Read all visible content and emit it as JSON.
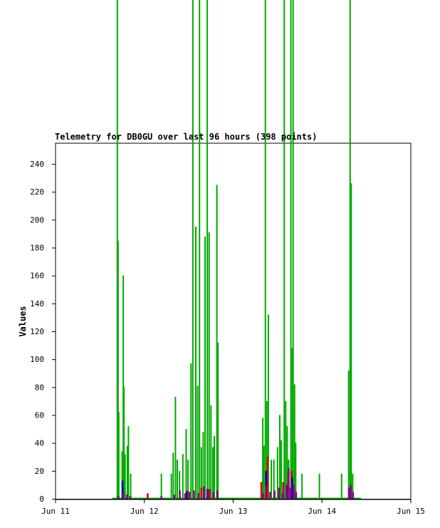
{
  "chart_data": {
    "type": "line",
    "title": "Telemetry for DB0GU over last 96 hours (398 points)",
    "ylabel": "Values",
    "xlabel": "",
    "ylim": [
      0,
      255
    ],
    "xlim": [
      0,
      96
    ],
    "grid": false,
    "y_ticks": [
      0,
      20,
      40,
      60,
      80,
      100,
      120,
      140,
      160,
      180,
      200,
      220,
      240
    ],
    "x_ticks": [
      {
        "value": 0,
        "label": "Jun 11"
      },
      {
        "value": 24,
        "label": "Jun 12"
      },
      {
        "value": 48,
        "label": "Jun 13"
      },
      {
        "value": 72,
        "label": "Jun 14"
      },
      {
        "value": 96,
        "label": "Jun 15"
      }
    ],
    "x_unit": "hours since Jun 11 00:00",
    "series": [
      {
        "name": "",
        "color": "#00aa00",
        "spikes": [
          [
            16.7,
            400
          ],
          [
            16.9,
            185
          ],
          [
            17.1,
            62
          ],
          [
            18.0,
            34
          ],
          [
            18.3,
            160
          ],
          [
            18.5,
            80
          ],
          [
            18.8,
            32
          ],
          [
            19.4,
            38
          ],
          [
            19.7,
            52
          ],
          [
            20.3,
            18
          ],
          [
            28.6,
            18
          ],
          [
            31.3,
            18
          ],
          [
            31.8,
            33
          ],
          [
            32.4,
            73
          ],
          [
            32.9,
            28
          ],
          [
            33.5,
            20
          ],
          [
            34.4,
            32
          ],
          [
            35.3,
            50
          ],
          [
            35.8,
            28
          ],
          [
            36.6,
            97
          ],
          [
            37.1,
            400
          ],
          [
            37.9,
            195
          ],
          [
            38.4,
            81
          ],
          [
            38.9,
            400
          ],
          [
            39.4,
            37
          ],
          [
            39.9,
            48
          ],
          [
            40.4,
            188
          ],
          [
            41.0,
            400
          ],
          [
            41.5,
            191
          ],
          [
            42.0,
            67
          ],
          [
            42.5,
            37
          ],
          [
            42.9,
            45
          ],
          [
            43.6,
            225
          ],
          [
            43.9,
            112
          ],
          [
            56.0,
            58
          ],
          [
            56.3,
            38
          ],
          [
            56.7,
            400
          ],
          [
            57.1,
            70
          ],
          [
            57.5,
            132
          ],
          [
            58.3,
            28
          ],
          [
            59.0,
            28
          ],
          [
            60.0,
            37
          ],
          [
            60.6,
            60
          ],
          [
            61.0,
            42
          ],
          [
            61.8,
            400
          ],
          [
            62.2,
            70
          ],
          [
            62.6,
            52
          ],
          [
            63.0,
            28
          ],
          [
            63.6,
            400
          ],
          [
            64.0,
            108
          ],
          [
            64.2,
            400
          ],
          [
            64.6,
            82
          ],
          [
            64.9,
            40
          ],
          [
            66.6,
            18
          ],
          [
            71.3,
            18
          ],
          [
            77.3,
            18
          ],
          [
            79.2,
            92
          ],
          [
            79.6,
            400
          ],
          [
            79.9,
            226
          ],
          [
            80.3,
            18
          ]
        ]
      },
      {
        "name": "",
        "color": "#dd0000",
        "spikes": [
          [
            18.2,
            8
          ],
          [
            24.9,
            4
          ],
          [
            35.6,
            6
          ],
          [
            39.4,
            8
          ],
          [
            41.6,
            7
          ],
          [
            55.6,
            12
          ],
          [
            57.3,
            30
          ],
          [
            61.5,
            12
          ],
          [
            62.9,
            18
          ],
          [
            63.8,
            20
          ],
          [
            64.4,
            10
          ],
          [
            79.7,
            5
          ]
        ]
      },
      {
        "name": "",
        "color": "#0000cc",
        "spikes": [
          [
            18.1,
            13
          ],
          [
            35.4,
            5
          ],
          [
            41.0,
            7
          ],
          [
            56.9,
            20
          ],
          [
            62.5,
            10
          ],
          [
            64.0,
            15
          ],
          [
            79.5,
            8
          ]
        ]
      },
      {
        "name": "",
        "color": "#880088",
        "spikes": [
          [
            17.0,
            2
          ],
          [
            18.3,
            5
          ],
          [
            19.3,
            3
          ],
          [
            20.2,
            2
          ],
          [
            28.6,
            2
          ],
          [
            32.1,
            3
          ],
          [
            33.6,
            6
          ],
          [
            35.0,
            4
          ],
          [
            36.2,
            5
          ],
          [
            37.4,
            6
          ],
          [
            38.6,
            4
          ],
          [
            40.1,
            9
          ],
          [
            41.2,
            7
          ],
          [
            42.6,
            5
          ],
          [
            43.7,
            6
          ],
          [
            56.1,
            4
          ],
          [
            56.9,
            9
          ],
          [
            58.0,
            5
          ],
          [
            59.2,
            6
          ],
          [
            60.4,
            8
          ],
          [
            61.4,
            4
          ],
          [
            62.4,
            10
          ],
          [
            63.0,
            22
          ],
          [
            63.5,
            8
          ],
          [
            64.4,
            8
          ],
          [
            65.0,
            5
          ],
          [
            79.3,
            8
          ],
          [
            79.8,
            10
          ],
          [
            80.4,
            5
          ]
        ]
      }
    ]
  }
}
